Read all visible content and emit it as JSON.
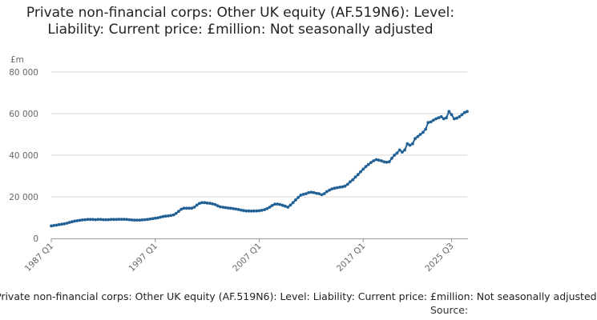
{
  "chart_data": {
    "type": "line",
    "title": "Private non-financial corps: Other UK equity (AF.519N6): Level: Liability: Current price: £million: Not seasonally adjusted",
    "ylabel": "£m",
    "xlabel": "",
    "ylim": [
      0,
      80000
    ],
    "y_ticks": [
      0,
      20000,
      40000,
      60000,
      80000
    ],
    "y_tick_labels": [
      "0",
      "20 000",
      "40 000",
      "60 000",
      "80 000"
    ],
    "x_tick_labels": [
      "1987 Q1",
      "1997 Q1",
      "2007 Q1",
      "2017 Q1",
      "2025 Q3"
    ],
    "grid": "horizontal",
    "line_color": "#206095",
    "x_start": "1987 Q1",
    "x_end": "2025 Q3",
    "series": [
      {
        "values": [
          6000,
          6200,
          6400,
          6600,
          6800,
          7000,
          7300,
          7700,
          8000,
          8300,
          8500,
          8700,
          8900,
          9000,
          9100,
          9100,
          9100,
          9000,
          9100,
          9100,
          9000,
          9000,
          9000,
          9100,
          9100,
          9100,
          9200,
          9200,
          9200,
          9100,
          9000,
          8900,
          8800,
          8800,
          8800,
          8900,
          9000,
          9100,
          9300,
          9500,
          9700,
          9900,
          10200,
          10500,
          10700,
          10800,
          11000,
          11300,
          12000,
          13000,
          14000,
          14500,
          14500,
          14500,
          14500,
          15000,
          16000,
          16800,
          17200,
          17200,
          17000,
          16900,
          16600,
          16300,
          15700,
          15200,
          15000,
          14800,
          14600,
          14500,
          14300,
          14100,
          13900,
          13600,
          13400,
          13200,
          13200,
          13100,
          13200,
          13200,
          13300,
          13500,
          13800,
          14300,
          15000,
          15800,
          16500,
          16500,
          16300,
          15900,
          15500,
          15000,
          16000,
          17200,
          18500,
          19700,
          20800,
          21200,
          21500,
          22000,
          22200,
          22000,
          21700,
          21500,
          21000,
          21500,
          22500,
          23200,
          23800,
          24100,
          24400,
          24600,
          24800,
          25100,
          26000,
          27200,
          28200,
          29500,
          30700,
          32000,
          33300,
          34500,
          35500,
          36500,
          37300,
          37900,
          37600,
          37300,
          36800,
          36600,
          36800,
          38500,
          40000,
          41000,
          42500,
          41500,
          42500,
          45500,
          44800,
          45500,
          48000,
          49000,
          50000,
          51000,
          52500,
          55700,
          56000,
          56800,
          57500,
          58000,
          58500,
          57500,
          58000,
          61000,
          59500,
          57500,
          57800,
          58500,
          59500,
          60500,
          61000
        ]
      }
    ]
  },
  "footer": {
    "description": "Private non-financial corps: Other UK equity (AF.519N6): Level: Liability: Current price: £million: Not seasonally adjusted",
    "source_label": "Source:"
  }
}
